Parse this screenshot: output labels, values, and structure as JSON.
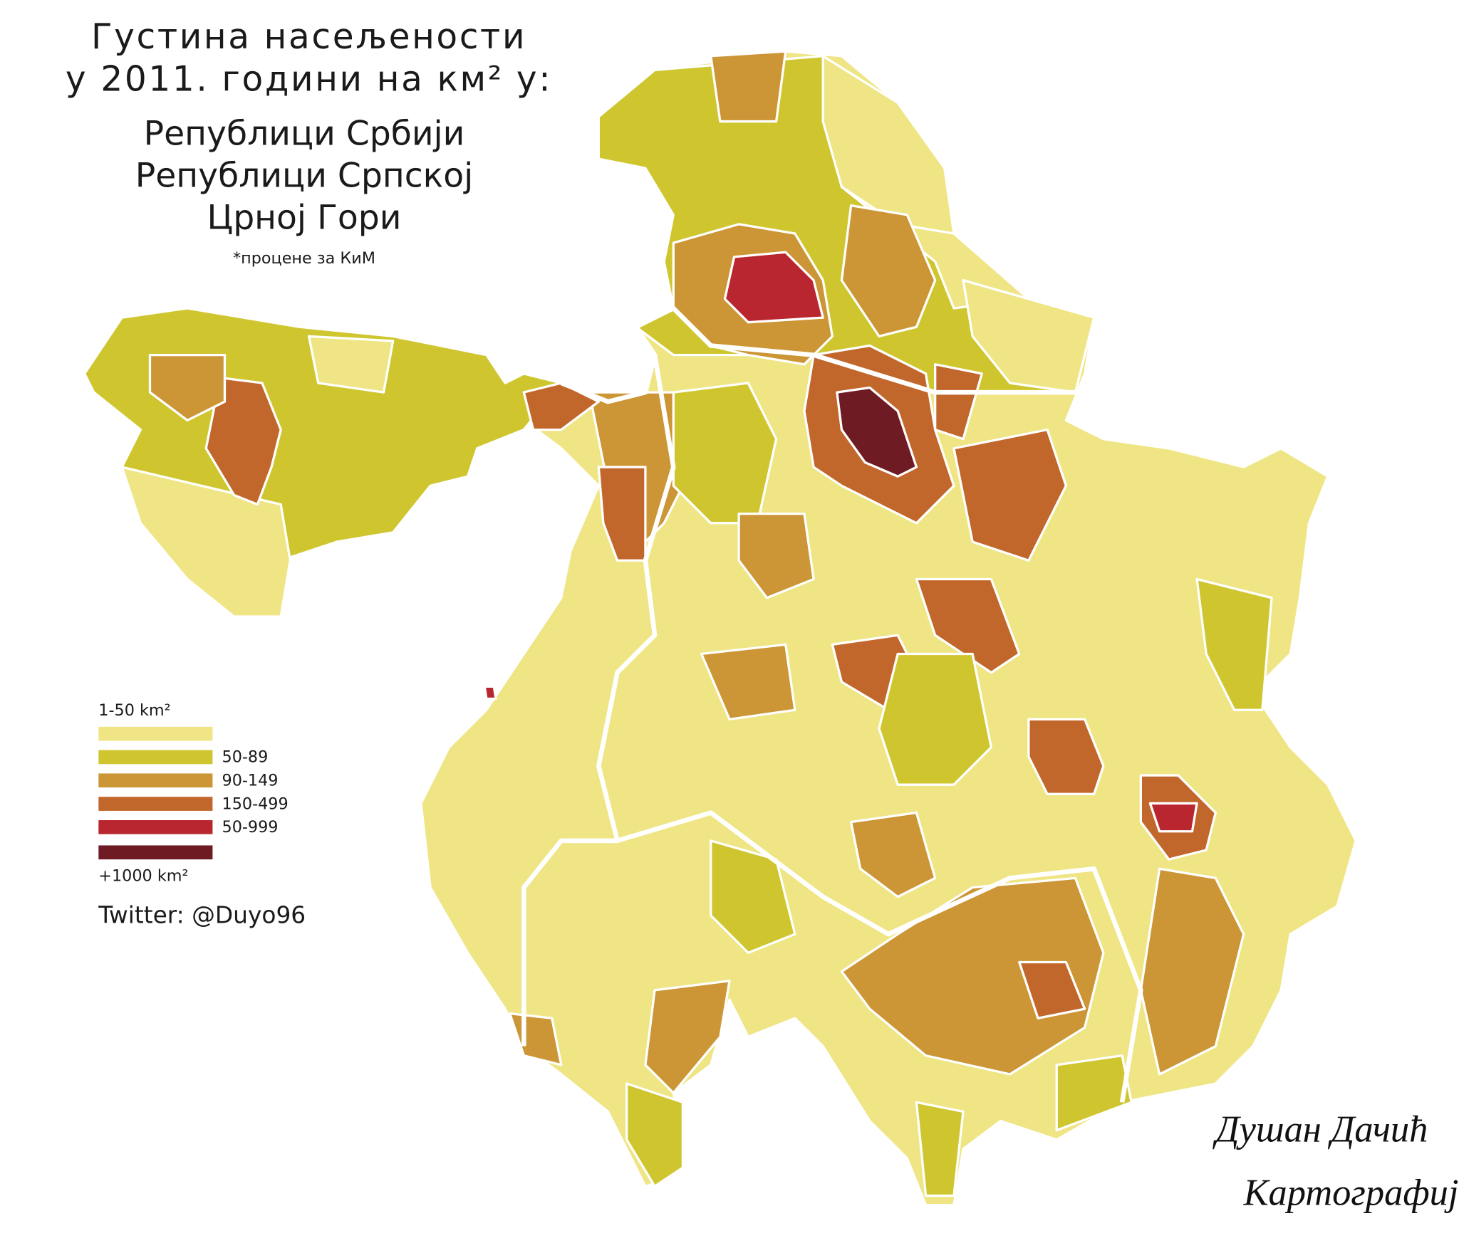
{
  "title": [
    "Густина насељености",
    "у 2011. години на км² у:"
  ],
  "subtitle": [
    "Републици Србији",
    "Републици Српској",
    "Црној Гори"
  ],
  "note": "*процене за КиМ",
  "legend": {
    "items": [
      {
        "label": "1-50 km²",
        "color": "#efe584"
      },
      {
        "label": "50-89",
        "color": "#cfc62f"
      },
      {
        "label": "90-149",
        "color": "#cc9535"
      },
      {
        "label": "150-499",
        "color": "#c2672c"
      },
      {
        "label": "50-999",
        "color": "#b9262f"
      },
      {
        "label": "+1000 km²",
        "color": "#6e1b24"
      }
    ]
  },
  "credit": "Twitter: @Duyo96",
  "signature": [
    "Душан Дачић",
    "Картографија"
  ]
}
